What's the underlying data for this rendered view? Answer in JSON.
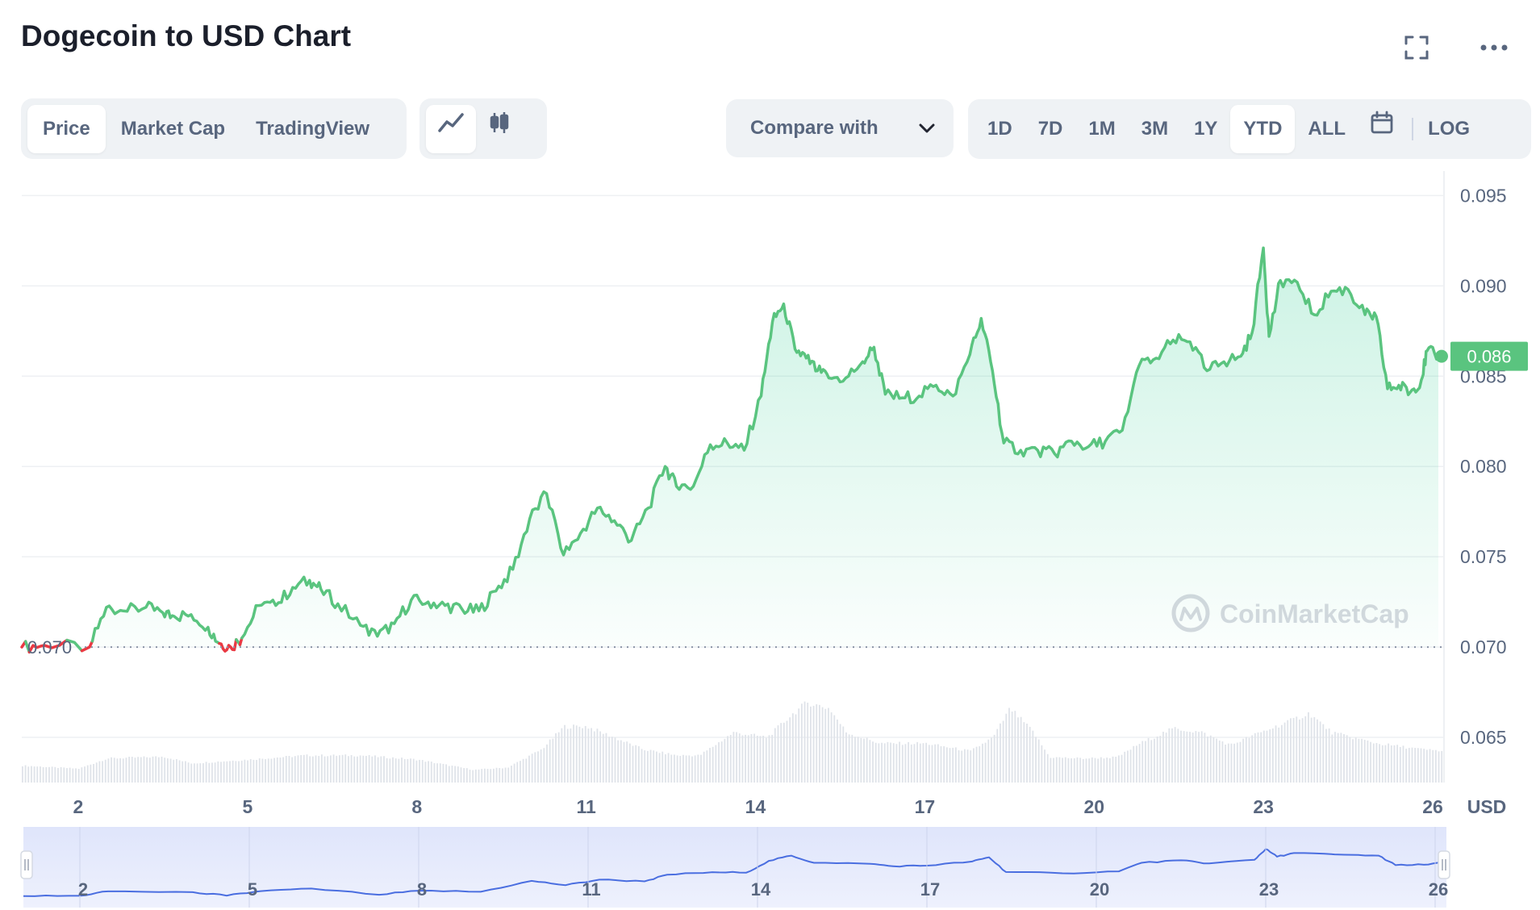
{
  "header": {
    "title": "Dogecoin to USD Chart"
  },
  "icons": {
    "fullscreen": "fullscreen-icon",
    "more": "more-icon",
    "line": "line-chart-icon",
    "candle": "candlestick-icon",
    "calendar": "calendar-icon",
    "chevron": "chevron-down-icon",
    "logo": "coinmarketcap-logo"
  },
  "tabs": [
    {
      "label": "Price",
      "active": true
    },
    {
      "label": "Market Cap",
      "active": false
    },
    {
      "label": "TradingView",
      "active": false
    }
  ],
  "compare": {
    "label": "Compare with"
  },
  "timeframes": [
    {
      "label": "1D",
      "active": false
    },
    {
      "label": "7D",
      "active": false
    },
    {
      "label": "1M",
      "active": false
    },
    {
      "label": "3M",
      "active": false
    },
    {
      "label": "1Y",
      "active": false
    },
    {
      "label": "YTD",
      "active": true
    },
    {
      "label": "ALL",
      "active": false
    }
  ],
  "log_label": "LOG",
  "watermark": "CoinMarketCap",
  "colors": {
    "up": "#16c784",
    "line": "#5ac47f",
    "down": "#ea3943",
    "navigator": "#4a6ee0",
    "current_badge": "#5ac47f"
  },
  "chart_data": {
    "type": "line",
    "x_unit": "day",
    "x_ticks": [
      2,
      5,
      8,
      11,
      14,
      17,
      20,
      23,
      26
    ],
    "y_ticks": [
      "0.065",
      "0.070",
      "0.075",
      "0.080",
      "0.085",
      "0.090",
      "0.095"
    ],
    "ylim": [
      0.0625,
      0.096
    ],
    "xlim": [
      1,
      26.2
    ],
    "currency_label": "USD",
    "baseline_value": 0.07,
    "baseline_label": "0.070",
    "current_price_label": "0.086",
    "current_price": 0.0861,
    "price_series": [
      [
        1.0,
        0.07
      ],
      [
        1.4,
        0.0701
      ],
      [
        2.2,
        0.07
      ],
      [
        2.5,
        0.0722
      ],
      [
        2.8,
        0.072
      ],
      [
        3.2,
        0.0722
      ],
      [
        3.5,
        0.0719
      ],
      [
        3.7,
        0.0717
      ],
      [
        4.0,
        0.0718
      ],
      [
        4.3,
        0.0711
      ],
      [
        4.5,
        0.0702
      ],
      [
        4.7,
        0.07
      ],
      [
        4.9,
        0.0705
      ],
      [
        5.2,
        0.0723
      ],
      [
        5.5,
        0.0723
      ],
      [
        5.8,
        0.0733
      ],
      [
        6.1,
        0.0737
      ],
      [
        6.3,
        0.0732
      ],
      [
        6.6,
        0.0724
      ],
      [
        7.0,
        0.0712
      ],
      [
        7.3,
        0.0706
      ],
      [
        7.6,
        0.0713
      ],
      [
        7.9,
        0.0726
      ],
      [
        8.2,
        0.0725
      ],
      [
        8.5,
        0.0723
      ],
      [
        8.8,
        0.0721
      ],
      [
        9.1,
        0.072
      ],
      [
        9.4,
        0.0731
      ],
      [
        9.7,
        0.0743
      ],
      [
        10.0,
        0.0771
      ],
      [
        10.3,
        0.0785
      ],
      [
        10.6,
        0.0751
      ],
      [
        10.9,
        0.0763
      ],
      [
        11.2,
        0.0777
      ],
      [
        11.5,
        0.077
      ],
      [
        11.8,
        0.0759
      ],
      [
        12.1,
        0.0777
      ],
      [
        12.4,
        0.08
      ],
      [
        12.6,
        0.0789
      ],
      [
        12.9,
        0.0789
      ],
      [
        13.2,
        0.0812
      ],
      [
        13.5,
        0.0813
      ],
      [
        13.8,
        0.0809
      ],
      [
        14.1,
        0.0839
      ],
      [
        14.3,
        0.088
      ],
      [
        14.5,
        0.089
      ],
      [
        14.7,
        0.0865
      ],
      [
        14.9,
        0.086
      ],
      [
        15.1,
        0.0853
      ],
      [
        15.3,
        0.0849
      ],
      [
        15.6,
        0.0849
      ],
      [
        15.9,
        0.0858
      ],
      [
        16.1,
        0.0866
      ],
      [
        16.3,
        0.084
      ],
      [
        16.6,
        0.0838
      ],
      [
        16.9,
        0.0839
      ],
      [
        17.2,
        0.0845
      ],
      [
        17.5,
        0.0839
      ],
      [
        17.8,
        0.0862
      ],
      [
        18.0,
        0.0882
      ],
      [
        18.2,
        0.0853
      ],
      [
        18.4,
        0.0813
      ],
      [
        18.7,
        0.0809
      ],
      [
        19.0,
        0.0809
      ],
      [
        19.3,
        0.0807
      ],
      [
        19.6,
        0.0814
      ],
      [
        19.9,
        0.0811
      ],
      [
        20.2,
        0.0814
      ],
      [
        20.5,
        0.082
      ],
      [
        20.8,
        0.0856
      ],
      [
        21.1,
        0.086
      ],
      [
        21.4,
        0.087
      ],
      [
        21.7,
        0.0869
      ],
      [
        22.0,
        0.0853
      ],
      [
        22.3,
        0.0858
      ],
      [
        22.6,
        0.0861
      ],
      [
        22.8,
        0.0874
      ],
      [
        23.0,
        0.0921
      ],
      [
        23.1,
        0.0872
      ],
      [
        23.3,
        0.0903
      ],
      [
        23.6,
        0.0902
      ],
      [
        23.9,
        0.0884
      ],
      [
        24.2,
        0.0897
      ],
      [
        24.5,
        0.0898
      ],
      [
        24.8,
        0.0884
      ],
      [
        25.0,
        0.0883
      ],
      [
        25.2,
        0.0843
      ],
      [
        25.4,
        0.0845
      ],
      [
        25.6,
        0.0841
      ],
      [
        25.8,
        0.0848
      ],
      [
        25.9,
        0.0864
      ],
      [
        26.1,
        0.0861
      ]
    ],
    "volume_series": [
      [
        1.0,
        0.28
      ],
      [
        2.0,
        0.23
      ],
      [
        2.5,
        0.4
      ],
      [
        3.5,
        0.43
      ],
      [
        4.0,
        0.32
      ],
      [
        5.0,
        0.38
      ],
      [
        6.0,
        0.45
      ],
      [
        7.0,
        0.45
      ],
      [
        8.0,
        0.38
      ],
      [
        9.0,
        0.21
      ],
      [
        9.6,
        0.25
      ],
      [
        10.2,
        0.55
      ],
      [
        10.6,
        0.93
      ],
      [
        11.0,
        0.93
      ],
      [
        11.4,
        0.78
      ],
      [
        12.0,
        0.55
      ],
      [
        12.6,
        0.45
      ],
      [
        13.0,
        0.45
      ],
      [
        13.6,
        0.83
      ],
      [
        14.2,
        0.75
      ],
      [
        14.6,
        1.1
      ],
      [
        14.9,
        1.33
      ],
      [
        15.3,
        1.23
      ],
      [
        15.6,
        0.83
      ],
      [
        16.2,
        0.65
      ],
      [
        17.0,
        0.65
      ],
      [
        17.8,
        0.52
      ],
      [
        18.2,
        0.75
      ],
      [
        18.5,
        1.23
      ],
      [
        18.9,
        0.85
      ],
      [
        19.2,
        0.42
      ],
      [
        19.8,
        0.4
      ],
      [
        20.4,
        0.42
      ],
      [
        20.8,
        0.65
      ],
      [
        21.4,
        0.9
      ],
      [
        21.9,
        0.83
      ],
      [
        22.4,
        0.62
      ],
      [
        22.8,
        0.78
      ],
      [
        23.4,
        1.0
      ],
      [
        23.8,
        1.15
      ],
      [
        24.2,
        0.83
      ],
      [
        25.0,
        0.65
      ],
      [
        25.8,
        0.55
      ],
      [
        26.2,
        0.52
      ]
    ],
    "navigator_series": [
      [
        1.0,
        0.07
      ],
      [
        2.0,
        0.0701
      ],
      [
        2.5,
        0.0722
      ],
      [
        4.0,
        0.0718
      ],
      [
        4.6,
        0.0702
      ],
      [
        5.2,
        0.0723
      ],
      [
        6.1,
        0.0735
      ],
      [
        7.3,
        0.0706
      ],
      [
        8.0,
        0.0725
      ],
      [
        9.1,
        0.072
      ],
      [
        10.0,
        0.0771
      ],
      [
        10.6,
        0.0751
      ],
      [
        11.2,
        0.0777
      ],
      [
        12.0,
        0.0769
      ],
      [
        12.4,
        0.08
      ],
      [
        13.2,
        0.0812
      ],
      [
        13.8,
        0.081
      ],
      [
        14.2,
        0.0865
      ],
      [
        14.6,
        0.089
      ],
      [
        15.0,
        0.0856
      ],
      [
        16.0,
        0.0851
      ],
      [
        16.4,
        0.084
      ],
      [
        17.0,
        0.0843
      ],
      [
        17.8,
        0.0862
      ],
      [
        18.1,
        0.0882
      ],
      [
        18.4,
        0.0813
      ],
      [
        19.4,
        0.0807
      ],
      [
        20.4,
        0.0816
      ],
      [
        20.8,
        0.0856
      ],
      [
        21.5,
        0.0868
      ],
      [
        22.0,
        0.0853
      ],
      [
        22.8,
        0.087
      ],
      [
        23.0,
        0.0921
      ],
      [
        23.2,
        0.0885
      ],
      [
        23.5,
        0.0902
      ],
      [
        24.4,
        0.0894
      ],
      [
        25.0,
        0.089
      ],
      [
        25.3,
        0.0845
      ],
      [
        25.8,
        0.0847
      ],
      [
        26.2,
        0.0861
      ]
    ]
  }
}
